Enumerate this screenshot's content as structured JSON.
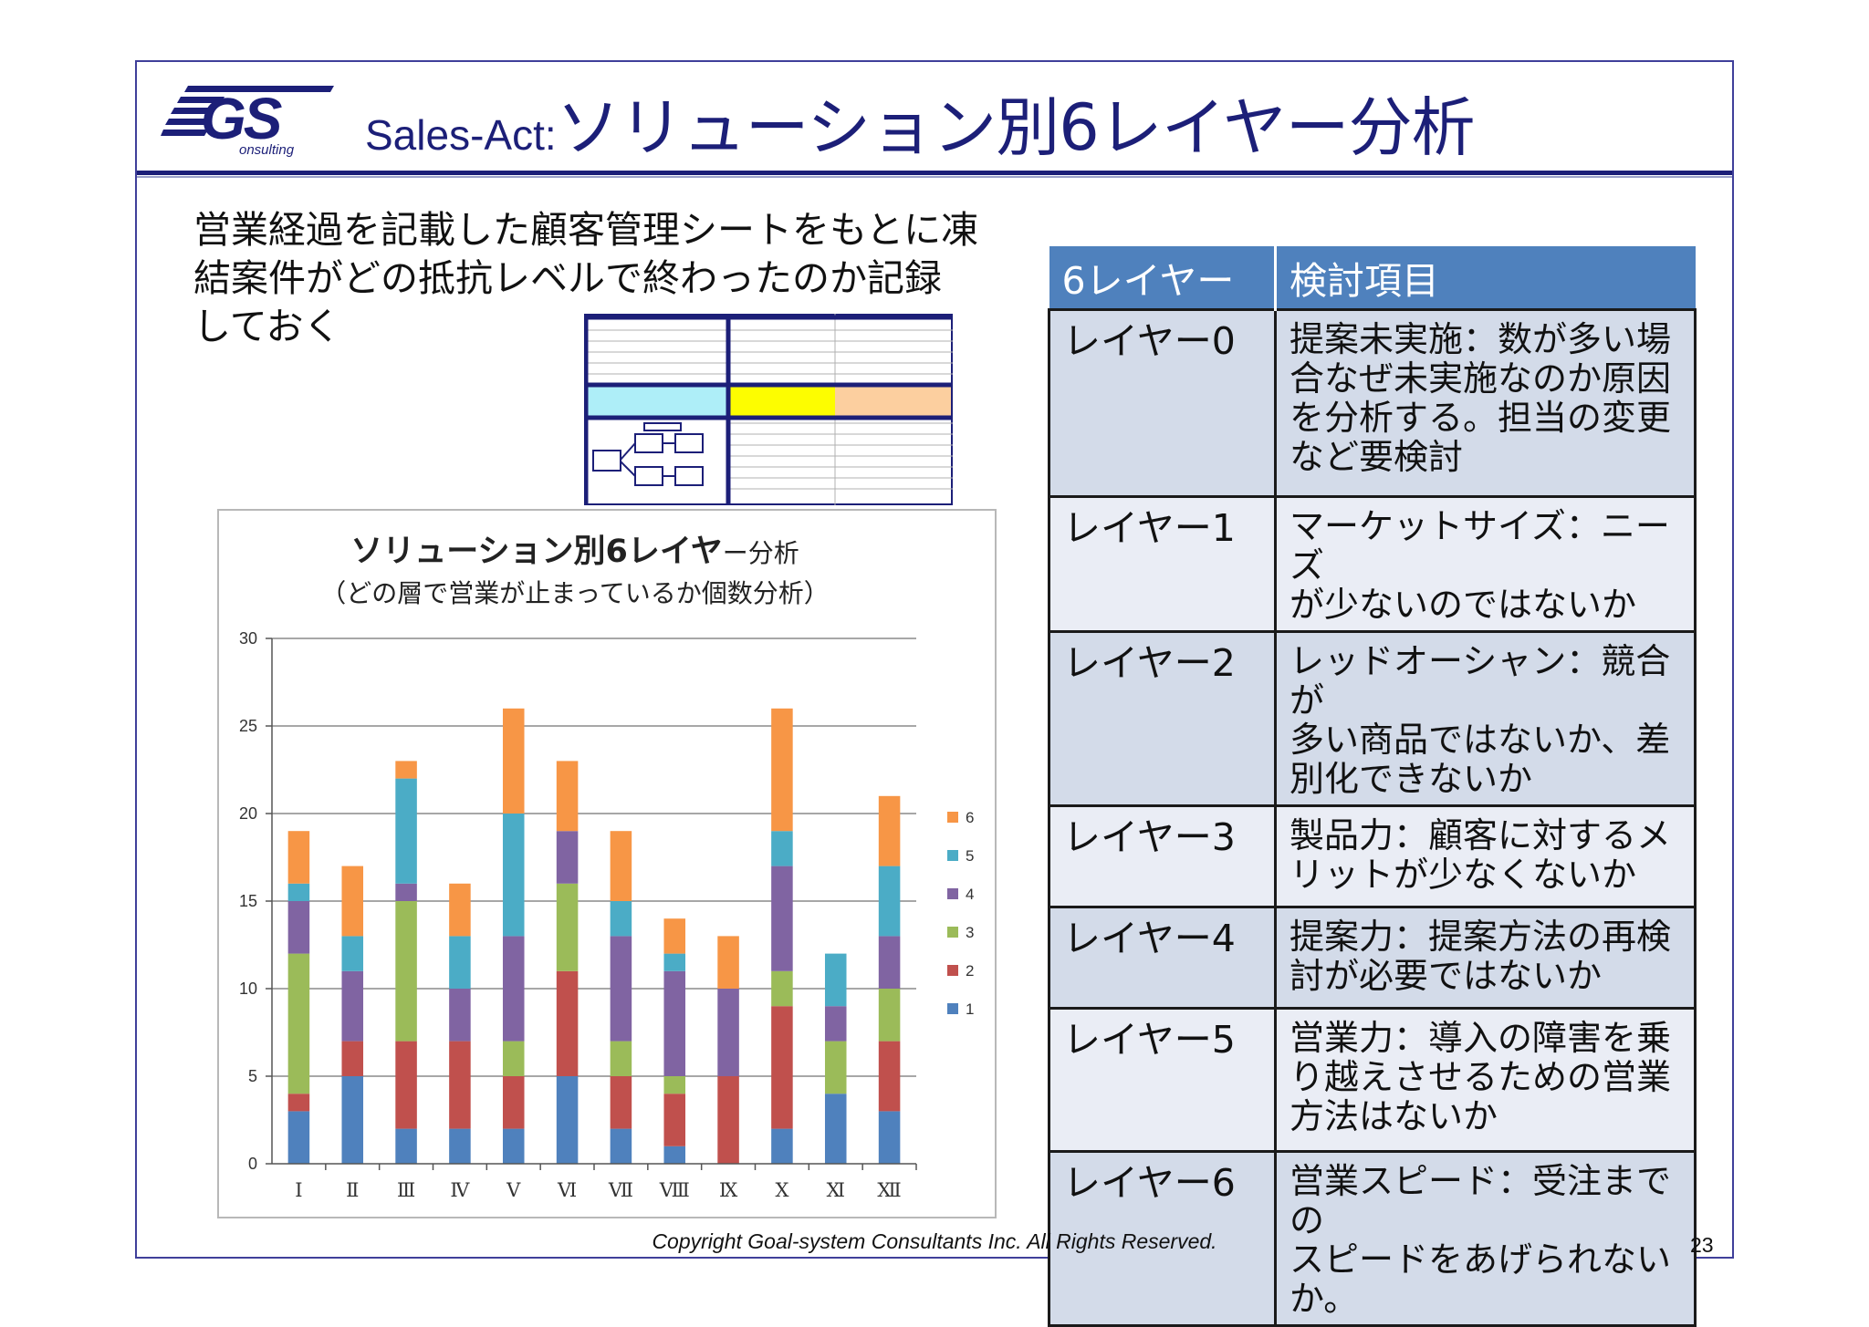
{
  "header": {
    "logo_text": "GS",
    "logo_subtext": "onsulting",
    "title_prefix": "Sales-Act:",
    "title_main": "ソリューション別6レイヤー分析"
  },
  "intro": {
    "lines": [
      "営業経過を記載した顧客管理シートをもとに凍",
      "結案件がどの抵抗レベルで終わったのか記録",
      "しておく"
    ]
  },
  "table": {
    "headers": [
      "6レイヤー",
      "検討項目"
    ],
    "rows": [
      {
        "layer": "レイヤー0",
        "lines": [
          "提案未実施：数が多い場",
          "合なぜ未実施なのか原因",
          "を分析する。担当の変更",
          "など要検討"
        ]
      },
      {
        "layer": "レイヤー1",
        "lines": [
          "マーケットサイズ：ニーズ",
          "が少ないのではないか"
        ]
      },
      {
        "layer": "レイヤー2",
        "lines": [
          "レッドオーシャン：競合が",
          "多い商品ではないか、差",
          "別化できないか"
        ]
      },
      {
        "layer": "レイヤー3",
        "lines": [
          "製品力：顧客に対するメ",
          "リットが少なくないか"
        ]
      },
      {
        "layer": "レイヤー4",
        "lines": [
          "提案力：提案方法の再検",
          "討が必要ではないか"
        ]
      },
      {
        "layer": "レイヤー5",
        "lines": [
          "営業力：導入の障害を乗",
          "り越えさせるための営業",
          "方法はないか"
        ]
      },
      {
        "layer": "レイヤー6",
        "lines": [
          "営業スピード：受注までの",
          "スピードをあげられないか。"
        ]
      }
    ]
  },
  "chart_data": {
    "type": "bar",
    "stacked": true,
    "title_main": "ソリューション別6レイヤ",
    "title_suffix": "ー分析",
    "subtitle": "（どの層で営業が止まっているか個数分析）",
    "xlabel": "",
    "ylabel": "",
    "ylim": [
      0,
      30
    ],
    "yticks": [
      0,
      5,
      10,
      15,
      20,
      25,
      30
    ],
    "grid": true,
    "legend_position": "right",
    "categories": [
      "Ⅰ",
      "Ⅱ",
      "Ⅲ",
      "Ⅳ",
      "Ⅴ",
      "Ⅵ",
      "Ⅶ",
      "Ⅷ",
      "Ⅸ",
      "Ⅹ",
      "Ⅺ",
      "Ⅻ"
    ],
    "series": [
      {
        "name": "1",
        "color": "#4f81bd",
        "values": [
          3,
          5,
          2,
          2,
          2,
          5,
          2,
          1,
          0,
          2,
          4,
          3
        ]
      },
      {
        "name": "2",
        "color": "#c0504d",
        "values": [
          1,
          2,
          5,
          5,
          3,
          6,
          3,
          3,
          5,
          7,
          0,
          4
        ]
      },
      {
        "name": "3",
        "color": "#9bbb59",
        "values": [
          8,
          0,
          8,
          0,
          2,
          5,
          2,
          1,
          0,
          2,
          3,
          3
        ]
      },
      {
        "name": "4",
        "color": "#8064a2",
        "values": [
          3,
          4,
          1,
          3,
          6,
          3,
          6,
          6,
          5,
          6,
          2,
          3
        ]
      },
      {
        "name": "5",
        "color": "#4bacc6",
        "values": [
          1,
          2,
          6,
          3,
          7,
          0,
          2,
          1,
          0,
          2,
          3,
          4
        ]
      },
      {
        "name": "6",
        "color": "#f79646",
        "values": [
          3,
          4,
          1,
          3,
          6,
          4,
          4,
          2,
          3,
          7,
          0,
          4
        ]
      }
    ]
  },
  "footer": {
    "copyright": "Copyright Goal-system Consultants Inc. All Rights Reserved.",
    "page_number": "23"
  },
  "colors": {
    "brand_navy": "#1c1f78",
    "table_header": "#4f81bd",
    "table_row": "#d3dbe9"
  }
}
